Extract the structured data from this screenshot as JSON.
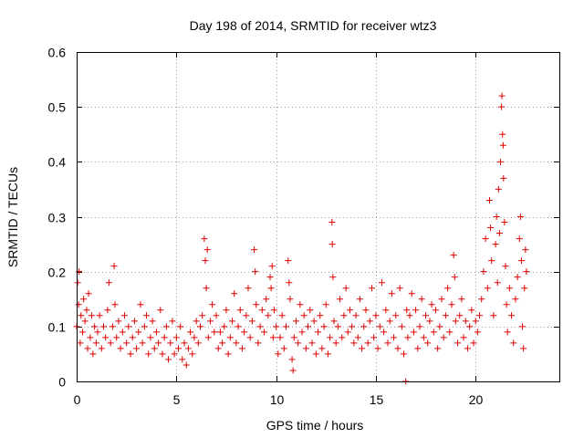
{
  "chart_data": {
    "type": "scatter",
    "title": "Day 198 of 2014, SRMTID for receiver wtz3",
    "xlabel": "GPS time / hours",
    "ylabel": "SRMTID / TECUs",
    "xlim": [
      0,
      24.2
    ],
    "ylim": [
      0,
      0.6
    ],
    "xticks": [
      0,
      5,
      10,
      15,
      20
    ],
    "xtick_labels": [
      "0",
      "5",
      "10",
      "15",
      "20"
    ],
    "yticks": [
      0,
      0.1,
      0.2,
      0.3,
      0.4,
      0.5,
      0.6
    ],
    "ytick_labels": [
      "0",
      "0.1",
      "0.2",
      "0.3",
      "0.4",
      "0.5",
      "0.6"
    ],
    "grid": true,
    "marker": "plus",
    "color": "#e00000",
    "series": [
      {
        "name": "SRMTID",
        "points": [
          [
            0.0,
            0.1
          ],
          [
            0.05,
            0.18
          ],
          [
            0.1,
            0.14
          ],
          [
            0.12,
            0.2
          ],
          [
            0.18,
            0.07
          ],
          [
            0.22,
            0.12
          ],
          [
            0.3,
            0.09
          ],
          [
            0.35,
            0.15
          ],
          [
            0.42,
            0.11
          ],
          [
            0.5,
            0.13
          ],
          [
            0.55,
            0.06
          ],
          [
            0.6,
            0.16
          ],
          [
            0.68,
            0.08
          ],
          [
            0.75,
            0.12
          ],
          [
            0.82,
            0.05
          ],
          [
            0.9,
            0.1
          ],
          [
            0.98,
            0.07
          ],
          [
            1.05,
            0.09
          ],
          [
            1.15,
            0.12
          ],
          [
            1.25,
            0.06
          ],
          [
            1.35,
            0.1
          ],
          [
            1.45,
            0.08
          ],
          [
            1.55,
            0.13
          ],
          [
            1.62,
            0.18
          ],
          [
            1.7,
            0.07
          ],
          [
            1.8,
            0.1
          ],
          [
            1.88,
            0.21
          ],
          [
            1.92,
            0.14
          ],
          [
            2.0,
            0.08
          ],
          [
            2.1,
            0.11
          ],
          [
            2.2,
            0.06
          ],
          [
            2.3,
            0.09
          ],
          [
            2.4,
            0.12
          ],
          [
            2.5,
            0.07
          ],
          [
            2.6,
            0.1
          ],
          [
            2.7,
            0.05
          ],
          [
            2.8,
            0.08
          ],
          [
            2.9,
            0.11
          ],
          [
            3.0,
            0.06
          ],
          [
            3.1,
            0.09
          ],
          [
            3.2,
            0.14
          ],
          [
            3.3,
            0.07
          ],
          [
            3.4,
            0.1
          ],
          [
            3.5,
            0.12
          ],
          [
            3.6,
            0.05
          ],
          [
            3.7,
            0.08
          ],
          [
            3.8,
            0.11
          ],
          [
            3.9,
            0.06
          ],
          [
            4.0,
            0.09
          ],
          [
            4.1,
            0.07
          ],
          [
            4.2,
            0.13
          ],
          [
            4.3,
            0.05
          ],
          [
            4.4,
            0.08
          ],
          [
            4.5,
            0.1
          ],
          [
            4.6,
            0.04
          ],
          [
            4.7,
            0.07
          ],
          [
            4.8,
            0.11
          ],
          [
            4.9,
            0.05
          ],
          [
            5.0,
            0.08
          ],
          [
            5.1,
            0.06
          ],
          [
            5.2,
            0.1
          ],
          [
            5.3,
            0.04
          ],
          [
            5.4,
            0.07
          ],
          [
            5.5,
            0.03
          ],
          [
            5.6,
            0.06
          ],
          [
            5.7,
            0.09
          ],
          [
            5.8,
            0.05
          ],
          [
            5.9,
            0.08
          ],
          [
            6.0,
            0.11
          ],
          [
            6.1,
            0.07
          ],
          [
            6.2,
            0.1
          ],
          [
            6.3,
            0.12
          ],
          [
            6.4,
            0.26
          ],
          [
            6.45,
            0.22
          ],
          [
            6.5,
            0.17
          ],
          [
            6.55,
            0.24
          ],
          [
            6.6,
            0.08
          ],
          [
            6.7,
            0.11
          ],
          [
            6.8,
            0.14
          ],
          [
            6.9,
            0.09
          ],
          [
            7.0,
            0.12
          ],
          [
            7.1,
            0.06
          ],
          [
            7.2,
            0.09
          ],
          [
            7.3,
            0.07
          ],
          [
            7.4,
            0.1
          ],
          [
            7.5,
            0.13
          ],
          [
            7.6,
            0.05
          ],
          [
            7.7,
            0.08
          ],
          [
            7.8,
            0.11
          ],
          [
            7.9,
            0.16
          ],
          [
            8.0,
            0.07
          ],
          [
            8.1,
            0.1
          ],
          [
            8.2,
            0.13
          ],
          [
            8.3,
            0.06
          ],
          [
            8.4,
            0.09
          ],
          [
            8.5,
            0.12
          ],
          [
            8.6,
            0.17
          ],
          [
            8.7,
            0.08
          ],
          [
            8.8,
            0.11
          ],
          [
            8.9,
            0.24
          ],
          [
            8.95,
            0.2
          ],
          [
            9.0,
            0.14
          ],
          [
            9.1,
            0.07
          ],
          [
            9.2,
            0.1
          ],
          [
            9.3,
            0.13
          ],
          [
            9.4,
            0.09
          ],
          [
            9.5,
            0.15
          ],
          [
            9.6,
            0.12
          ],
          [
            9.7,
            0.19
          ],
          [
            9.75,
            0.17
          ],
          [
            9.8,
            0.21
          ],
          [
            9.85,
            0.08
          ],
          [
            9.9,
            0.13
          ],
          [
            10.0,
            0.1
          ],
          [
            10.1,
            0.05
          ],
          [
            10.2,
            0.08
          ],
          [
            10.3,
            0.12
          ],
          [
            10.4,
            0.06
          ],
          [
            10.5,
            0.1
          ],
          [
            10.6,
            0.22
          ],
          [
            10.65,
            0.18
          ],
          [
            10.7,
            0.15
          ],
          [
            10.8,
            0.04
          ],
          [
            10.85,
            0.02
          ],
          [
            10.9,
            0.08
          ],
          [
            11.0,
            0.11
          ],
          [
            11.1,
            0.07
          ],
          [
            11.2,
            0.14
          ],
          [
            11.3,
            0.09
          ],
          [
            11.4,
            0.12
          ],
          [
            11.5,
            0.06
          ],
          [
            11.6,
            0.1
          ],
          [
            11.7,
            0.13
          ],
          [
            11.8,
            0.07
          ],
          [
            11.9,
            0.11
          ],
          [
            12.0,
            0.05
          ],
          [
            12.1,
            0.09
          ],
          [
            12.2,
            0.12
          ],
          [
            12.3,
            0.06
          ],
          [
            12.4,
            0.1
          ],
          [
            12.5,
            0.14
          ],
          [
            12.6,
            0.05
          ],
          [
            12.7,
            0.08
          ],
          [
            12.8,
            0.29
          ],
          [
            12.82,
            0.25
          ],
          [
            12.85,
            0.19
          ],
          [
            12.9,
            0.11
          ],
          [
            13.0,
            0.07
          ],
          [
            13.1,
            0.1
          ],
          [
            13.2,
            0.15
          ],
          [
            13.3,
            0.08
          ],
          [
            13.4,
            0.12
          ],
          [
            13.5,
            0.17
          ],
          [
            13.6,
            0.09
          ],
          [
            13.7,
            0.13
          ],
          [
            13.8,
            0.1
          ],
          [
            13.9,
            0.07
          ],
          [
            14.0,
            0.12
          ],
          [
            14.1,
            0.08
          ],
          [
            14.2,
            0.15
          ],
          [
            14.3,
            0.06
          ],
          [
            14.4,
            0.1
          ],
          [
            14.5,
            0.13
          ],
          [
            14.6,
            0.07
          ],
          [
            14.7,
            0.11
          ],
          [
            14.8,
            0.17
          ],
          [
            14.9,
            0.08
          ],
          [
            15.0,
            0.12
          ],
          [
            15.1,
            0.06
          ],
          [
            15.2,
            0.1
          ],
          [
            15.3,
            0.18
          ],
          [
            15.4,
            0.09
          ],
          [
            15.5,
            0.13
          ],
          [
            15.6,
            0.07
          ],
          [
            15.7,
            0.11
          ],
          [
            15.8,
            0.16
          ],
          [
            15.9,
            0.08
          ],
          [
            16.0,
            0.12
          ],
          [
            16.1,
            0.06
          ],
          [
            16.2,
            0.17
          ],
          [
            16.3,
            0.1
          ],
          [
            16.4,
            0.05
          ],
          [
            16.5,
            0.0
          ],
          [
            16.55,
            0.13
          ],
          [
            16.6,
            0.08
          ],
          [
            16.7,
            0.12
          ],
          [
            16.8,
            0.16
          ],
          [
            16.9,
            0.09
          ],
          [
            17.0,
            0.13
          ],
          [
            17.1,
            0.06
          ],
          [
            17.2,
            0.1
          ],
          [
            17.3,
            0.15
          ],
          [
            17.4,
            0.08
          ],
          [
            17.5,
            0.12
          ],
          [
            17.6,
            0.07
          ],
          [
            17.7,
            0.11
          ],
          [
            17.8,
            0.14
          ],
          [
            17.9,
            0.09
          ],
          [
            18.0,
            0.13
          ],
          [
            18.1,
            0.06
          ],
          [
            18.2,
            0.1
          ],
          [
            18.3,
            0.15
          ],
          [
            18.4,
            0.08
          ],
          [
            18.5,
            0.12
          ],
          [
            18.6,
            0.17
          ],
          [
            18.7,
            0.09
          ],
          [
            18.8,
            0.14
          ],
          [
            18.9,
            0.23
          ],
          [
            18.95,
            0.19
          ],
          [
            19.0,
            0.11
          ],
          [
            19.1,
            0.07
          ],
          [
            19.2,
            0.12
          ],
          [
            19.3,
            0.15
          ],
          [
            19.4,
            0.08
          ],
          [
            19.5,
            0.11
          ],
          [
            19.6,
            0.06
          ],
          [
            19.7,
            0.1
          ],
          [
            19.8,
            0.13
          ],
          [
            19.9,
            0.07
          ],
          [
            20.0,
            0.11
          ],
          [
            20.1,
            0.09
          ],
          [
            20.2,
            0.12
          ],
          [
            20.3,
            0.15
          ],
          [
            20.4,
            0.2
          ],
          [
            20.5,
            0.26
          ],
          [
            20.6,
            0.17
          ],
          [
            20.7,
            0.33
          ],
          [
            20.75,
            0.28
          ],
          [
            20.8,
            0.22
          ],
          [
            20.9,
            0.12
          ],
          [
            21.0,
            0.25
          ],
          [
            21.05,
            0.3
          ],
          [
            21.1,
            0.18
          ],
          [
            21.15,
            0.35
          ],
          [
            21.2,
            0.27
          ],
          [
            21.25,
            0.4
          ],
          [
            21.3,
            0.5
          ],
          [
            21.32,
            0.52
          ],
          [
            21.35,
            0.45
          ],
          [
            21.38,
            0.43
          ],
          [
            21.4,
            0.37
          ],
          [
            21.45,
            0.29
          ],
          [
            21.5,
            0.21
          ],
          [
            21.55,
            0.14
          ],
          [
            21.6,
            0.09
          ],
          [
            21.7,
            0.17
          ],
          [
            21.8,
            0.12
          ],
          [
            21.9,
            0.07
          ],
          [
            22.0,
            0.15
          ],
          [
            22.1,
            0.19
          ],
          [
            22.2,
            0.26
          ],
          [
            22.25,
            0.3
          ],
          [
            22.3,
            0.22
          ],
          [
            22.35,
            0.1
          ],
          [
            22.4,
            0.06
          ],
          [
            22.45,
            0.17
          ],
          [
            22.5,
            0.24
          ],
          [
            22.55,
            0.2
          ]
        ]
      }
    ]
  }
}
